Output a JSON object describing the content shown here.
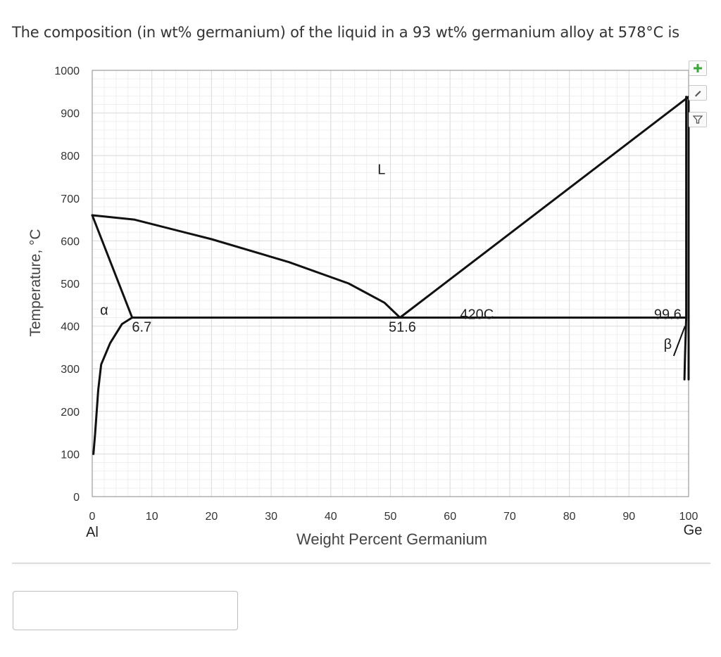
{
  "question": "The composition (in wt% germanium) of the liquid in a 93 wt% germanium alloy at 578°C is",
  "answer_input": {
    "value": "",
    "placeholder": ""
  },
  "toolbar": {
    "add_icon": "plus-icon",
    "edit_icon": "pencil-icon",
    "filter_icon": "filter-icon"
  },
  "colors": {
    "line": "#111111",
    "grid": "#e4e4e4",
    "add": "#3aa835"
  },
  "chart_data": {
    "type": "line",
    "xlabel": "Weight Percent Germanium",
    "ylabel": "Temperature, °C",
    "xlim": [
      0,
      100
    ],
    "ylim": [
      0,
      1000
    ],
    "grid": true,
    "x_ticks": [
      "0",
      "10",
      "20",
      "30",
      "40",
      "50",
      "60",
      "70",
      "80",
      "90",
      "100"
    ],
    "y_ticks": [
      "0",
      "100",
      "200",
      "300",
      "400",
      "500",
      "600",
      "700",
      "800",
      "900",
      "1000"
    ],
    "x_end_labels": {
      "left": "Al",
      "right": "Ge"
    },
    "series": [
      {
        "id": "liquidus-al",
        "values": [
          [
            0,
            660
          ],
          [
            7,
            650
          ],
          [
            20,
            604
          ],
          [
            33,
            550
          ],
          [
            43,
            500
          ],
          [
            49,
            455
          ],
          [
            51.6,
            420
          ]
        ]
      },
      {
        "id": "liquidus-ge",
        "values": [
          [
            51.6,
            420
          ],
          [
            100,
            938
          ]
        ]
      },
      {
        "id": "solidus-al",
        "values": [
          [
            0,
            660
          ],
          [
            6.7,
            420
          ]
        ]
      },
      {
        "id": "eutectic-line",
        "values": [
          [
            6.7,
            420
          ],
          [
            99.6,
            420
          ]
        ]
      },
      {
        "id": "solvus-al",
        "values": [
          [
            6.7,
            420
          ],
          [
            5,
            405
          ],
          [
            3,
            360
          ],
          [
            1.5,
            310
          ],
          [
            1,
            250
          ],
          [
            0.5,
            150
          ],
          [
            0.2,
            100
          ]
        ]
      },
      {
        "id": "solidus-ge",
        "values": [
          [
            99.6,
            938
          ],
          [
            99.6,
            420
          ]
        ]
      },
      {
        "id": "right-edge-ge",
        "values": [
          [
            100,
            938
          ],
          [
            100,
            275
          ]
        ]
      },
      {
        "id": "solvus-ge",
        "values": [
          [
            99.6,
            420
          ],
          [
            99.4,
            330
          ],
          [
            99.3,
            275
          ]
        ]
      }
    ],
    "annotations": [
      {
        "text": "α",
        "x": 2,
        "y": 440
      },
      {
        "text": "6.7",
        "x": 8.3,
        "y": 400
      },
      {
        "text": "L",
        "x": 48.5,
        "y": 770
      },
      {
        "text": "51.6",
        "x": 52,
        "y": 400
      },
      {
        "text": "420C",
        "x": 64.5,
        "y": 430
      },
      {
        "text": "99.6",
        "x": 96.5,
        "y": 430
      },
      {
        "text": "β",
        "x": 96.5,
        "y": 360
      }
    ]
  }
}
